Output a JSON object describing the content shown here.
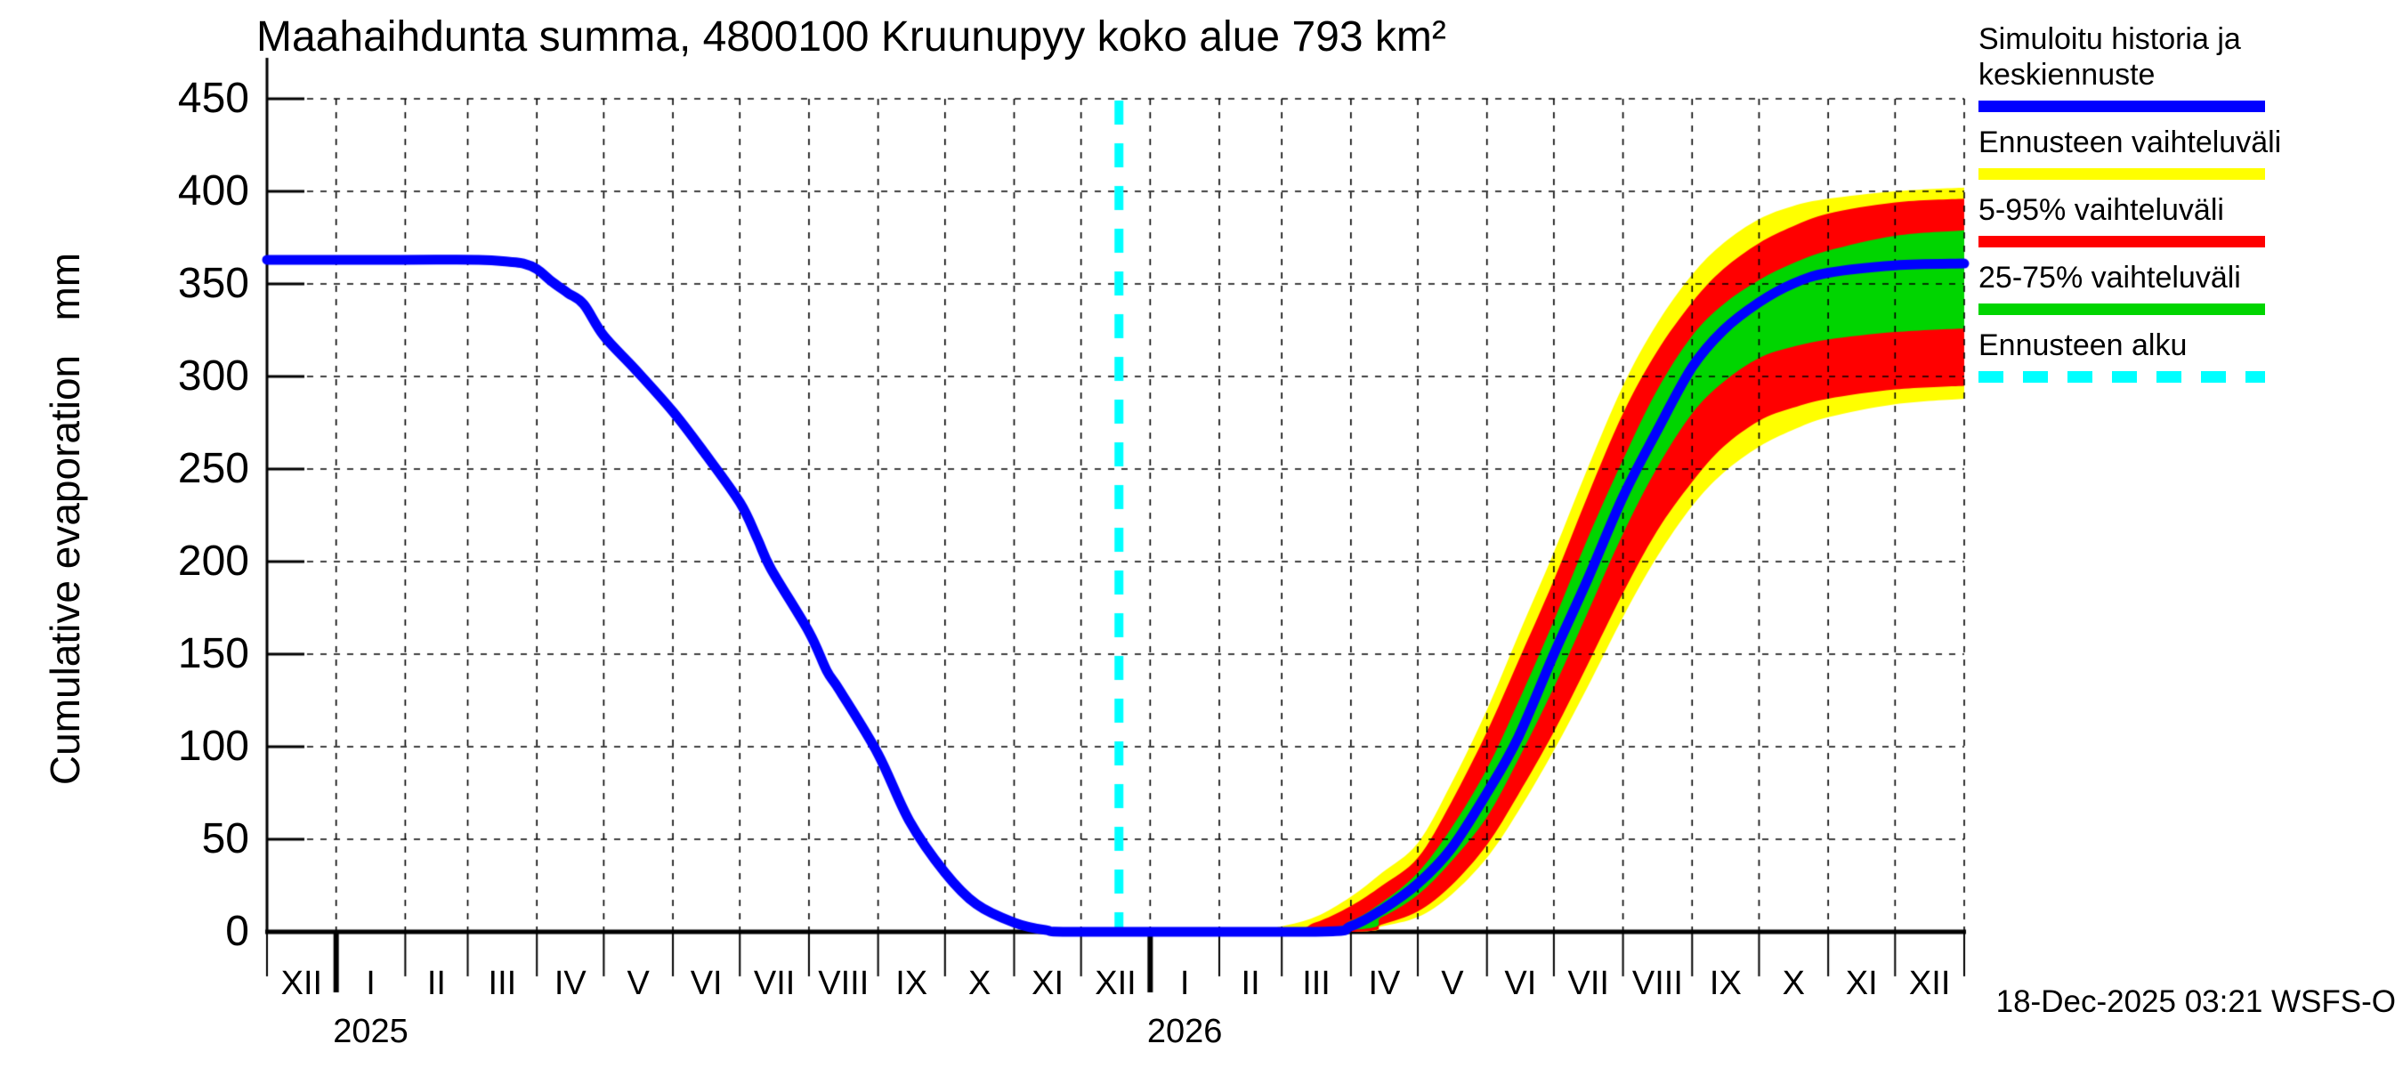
{
  "title": "Maahaihdunta summa, 4800100 Kruunupyy koko alue 793 km²",
  "y_axis_label": "Cumulative evaporation   mm",
  "timestamp": "18-Dec-2025 03:21 WSFS-O",
  "legend": [
    {
      "label": "Simuloitu historia ja keskiennuste",
      "color": "#0000ff",
      "style": "solid"
    },
    {
      "label": "Ennusteen vaihteluväli",
      "color": "#ffff00",
      "style": "solid"
    },
    {
      "label": "5-95% vaihteluväli",
      "color": "#ff0000",
      "style": "solid"
    },
    {
      "label": "25-75% vaihteluväli",
      "color": "#00d500",
      "style": "solid"
    },
    {
      "label": "Ennusteen alku",
      "color": "#00ffff",
      "style": "dashed"
    }
  ],
  "chart_data": {
    "type": "line",
    "title": "Maahaihdunta summa, 4800100 Kruunupyy koko alue 793 km²",
    "xlabel": "",
    "ylabel": "Cumulative evaporation mm",
    "ylim": [
      0,
      450
    ],
    "y_ticks": [
      0,
      50,
      100,
      150,
      200,
      250,
      300,
      350,
      400,
      450
    ],
    "grid": true,
    "legend_position": "top-right-outside",
    "x_unit": "days since 2024-12-01",
    "total_days": 761,
    "x_months": [
      "XII",
      "I",
      "II",
      "III",
      "IV",
      "V",
      "VI",
      "VII",
      "VIII",
      "IX",
      "X",
      "XI",
      "XII",
      "I",
      "II",
      "III",
      "IV",
      "V",
      "VI",
      "VII",
      "VIII",
      "IX",
      "X",
      "XI",
      "XII"
    ],
    "x_month_days": [
      31,
      31,
      28,
      31,
      30,
      31,
      30,
      31,
      31,
      30,
      31,
      30,
      31,
      31,
      28,
      31,
      30,
      31,
      30,
      31,
      31,
      30,
      31,
      30,
      31
    ],
    "x_years": [
      {
        "label": "2025",
        "month_index": 1
      },
      {
        "label": "2026",
        "month_index": 13
      }
    ],
    "forecast_start": {
      "day": 382,
      "date_label": "18-Dec-2025"
    },
    "series": [
      {
        "name": "Ennusteen vaihteluväli",
        "type": "band",
        "color": "#ffff00",
        "upper": [
          [
            382,
            0
          ],
          [
            440,
            1
          ],
          [
            455,
            3
          ],
          [
            470,
            8
          ],
          [
            486,
            19
          ],
          [
            500,
            32
          ],
          [
            516,
            48
          ],
          [
            531,
            80
          ],
          [
            547,
            120
          ],
          [
            561,
            160
          ],
          [
            577,
            205
          ],
          [
            592,
            250
          ],
          [
            608,
            295
          ],
          [
            623,
            328
          ],
          [
            639,
            355
          ],
          [
            653,
            372
          ],
          [
            669,
            385
          ],
          [
            684,
            392
          ],
          [
            700,
            396
          ],
          [
            730,
            400
          ],
          [
            761,
            402
          ]
        ],
        "lower": [
          [
            382,
            0
          ],
          [
            486,
            0
          ],
          [
            500,
            3
          ],
          [
            516,
            8
          ],
          [
            531,
            20
          ],
          [
            547,
            40
          ],
          [
            561,
            65
          ],
          [
            577,
            98
          ],
          [
            592,
            132
          ],
          [
            608,
            170
          ],
          [
            623,
            202
          ],
          [
            639,
            230
          ],
          [
            653,
            248
          ],
          [
            669,
            262
          ],
          [
            684,
            271
          ],
          [
            700,
            278
          ],
          [
            730,
            285
          ],
          [
            761,
            288
          ]
        ]
      },
      {
        "name": "5-95% vaihteluväli",
        "type": "band",
        "color": "#ff0000",
        "upper": [
          [
            382,
            0
          ],
          [
            455,
            1
          ],
          [
            470,
            5
          ],
          [
            486,
            14
          ],
          [
            500,
            25
          ],
          [
            516,
            40
          ],
          [
            531,
            70
          ],
          [
            547,
            108
          ],
          [
            561,
            146
          ],
          [
            577,
            190
          ],
          [
            592,
            235
          ],
          [
            608,
            280
          ],
          [
            623,
            313
          ],
          [
            639,
            340
          ],
          [
            653,
            358
          ],
          [
            669,
            372
          ],
          [
            684,
            381
          ],
          [
            700,
            388
          ],
          [
            730,
            394
          ],
          [
            761,
            396
          ]
        ],
        "lower": [
          [
            382,
            0
          ],
          [
            486,
            0
          ],
          [
            500,
            4
          ],
          [
            516,
            11
          ],
          [
            531,
            25
          ],
          [
            547,
            47
          ],
          [
            561,
            74
          ],
          [
            577,
            108
          ],
          [
            592,
            144
          ],
          [
            608,
            183
          ],
          [
            623,
            216
          ],
          [
            639,
            243
          ],
          [
            653,
            262
          ],
          [
            669,
            276
          ],
          [
            684,
            283
          ],
          [
            700,
            288
          ],
          [
            730,
            293
          ],
          [
            761,
            295
          ]
        ]
      },
      {
        "name": "25-75% vaihteluväli",
        "type": "band",
        "color": "#00d500",
        "upper": [
          [
            382,
            0
          ],
          [
            470,
            2
          ],
          [
            486,
            6
          ],
          [
            500,
            16
          ],
          [
            516,
            32
          ],
          [
            531,
            56
          ],
          [
            547,
            88
          ],
          [
            561,
            124
          ],
          [
            577,
            168
          ],
          [
            592,
            212
          ],
          [
            608,
            255
          ],
          [
            623,
            292
          ],
          [
            639,
            322
          ],
          [
            653,
            339
          ],
          [
            669,
            352
          ],
          [
            684,
            361
          ],
          [
            700,
            368
          ],
          [
            730,
            376
          ],
          [
            761,
            379
          ]
        ],
        "lower": [
          [
            382,
            0
          ],
          [
            486,
            1
          ],
          [
            500,
            8
          ],
          [
            516,
            20
          ],
          [
            531,
            38
          ],
          [
            547,
            62
          ],
          [
            561,
            93
          ],
          [
            577,
            132
          ],
          [
            592,
            172
          ],
          [
            608,
            215
          ],
          [
            623,
            250
          ],
          [
            639,
            280
          ],
          [
            653,
            297
          ],
          [
            669,
            310
          ],
          [
            684,
            316
          ],
          [
            700,
            320
          ],
          [
            730,
            324
          ],
          [
            761,
            326
          ]
        ]
      },
      {
        "name": "Ennusteen alku",
        "type": "vline",
        "color": "#00ffff",
        "day": 382
      },
      {
        "name": "Simuloitu historia ja keskiennuste",
        "type": "line",
        "color": "#0000ff",
        "points": [
          [
            0,
            363
          ],
          [
            60,
            363
          ],
          [
            95,
            363
          ],
          [
            108,
            362
          ],
          [
            115,
            361
          ],
          [
            121,
            358
          ],
          [
            128,
            351
          ],
          [
            135,
            345
          ],
          [
            142,
            339
          ],
          [
            151,
            322
          ],
          [
            165,
            304
          ],
          [
            182,
            281
          ],
          [
            196,
            259
          ],
          [
            212,
            232
          ],
          [
            220,
            212
          ],
          [
            226,
            196
          ],
          [
            243,
            162
          ],
          [
            251,
            141
          ],
          [
            257,
            130
          ],
          [
            274,
            96
          ],
          [
            288,
            60
          ],
          [
            304,
            32
          ],
          [
            318,
            15
          ],
          [
            335,
            5
          ],
          [
            349,
            1
          ],
          [
            365,
            0
          ],
          [
            470,
            0
          ],
          [
            486,
            3
          ],
          [
            500,
            12
          ],
          [
            516,
            26
          ],
          [
            531,
            45
          ],
          [
            547,
            75
          ],
          [
            561,
            105
          ],
          [
            577,
            150
          ],
          [
            592,
            190
          ],
          [
            608,
            235
          ],
          [
            623,
            270
          ],
          [
            639,
            305
          ],
          [
            653,
            325
          ],
          [
            669,
            340
          ],
          [
            684,
            350
          ],
          [
            700,
            356
          ],
          [
            730,
            360
          ],
          [
            761,
            361
          ]
        ]
      }
    ]
  }
}
